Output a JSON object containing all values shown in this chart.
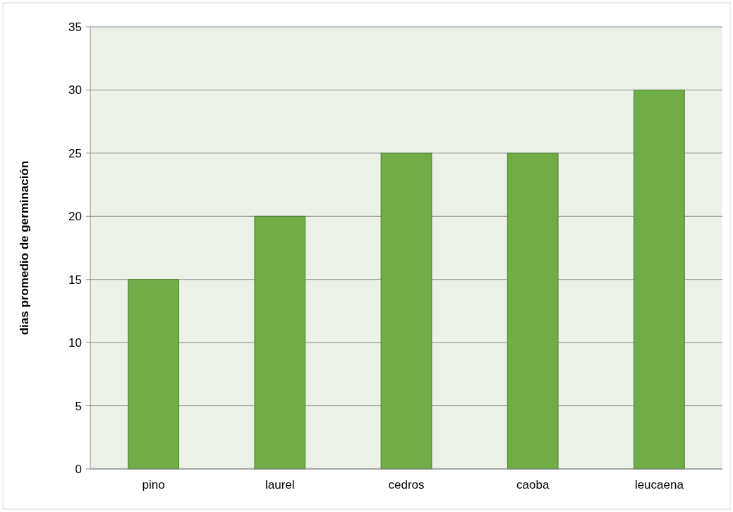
{
  "chart_data": {
    "type": "bar",
    "ylabel": "dias promedio de germinación",
    "categories": [
      "pino",
      "laurel",
      "cedros",
      "caoba",
      "leucaena"
    ],
    "values": [
      15,
      20,
      25,
      25,
      30
    ],
    "color": "#70ad47",
    "ylim": [
      0,
      35
    ],
    "yticks": [
      0,
      5,
      10,
      15,
      20,
      25,
      30,
      35
    ],
    "grid": "y"
  }
}
